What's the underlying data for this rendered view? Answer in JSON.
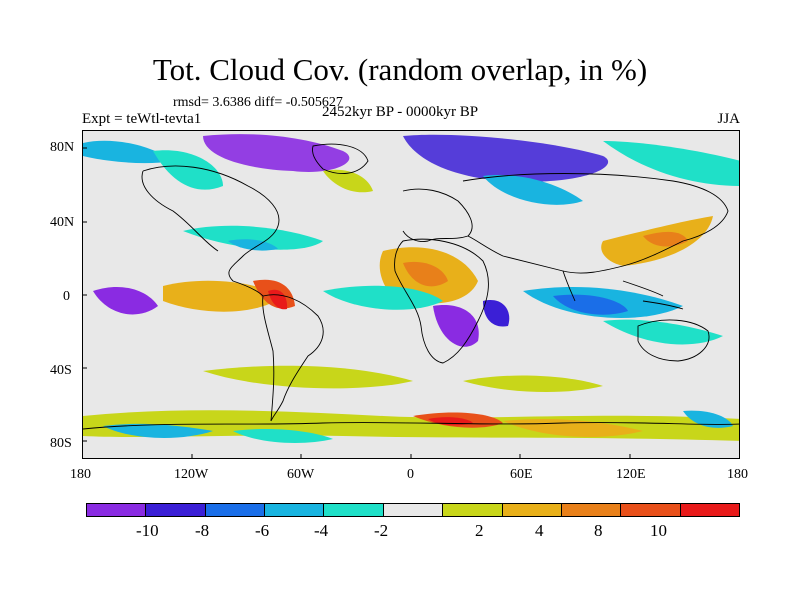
{
  "title": "Tot. Cloud Cov. (random overlap, in %)",
  "stats": "rmsd= 3.6386 diff= -0.505627",
  "expt": "Expt = teWtl-tevta1",
  "period": "2452kyr BP - 0000kyr BP",
  "season": "JJA",
  "lat_labels": [
    "80N",
    "40N",
    "0",
    "40S",
    "80S"
  ],
  "lon_labels": [
    "180",
    "120W",
    "60W",
    "0",
    "60E",
    "120E",
    "180"
  ],
  "colorbar": {
    "labels": [
      "-10",
      "-8",
      "-6",
      "-4",
      "-2",
      "2",
      "4",
      "8",
      "10"
    ],
    "colors": [
      "#8a2be2",
      "#3b1fd6",
      "#1a6ee8",
      "#19b4e0",
      "#1fe0c8",
      "#e8e8e8",
      "#c8d61a",
      "#e8b01a",
      "#e8801a",
      "#e8501a",
      "#e81a1a"
    ]
  },
  "map": {
    "background": "#e8e8e8",
    "coastline_color": "#000000"
  }
}
